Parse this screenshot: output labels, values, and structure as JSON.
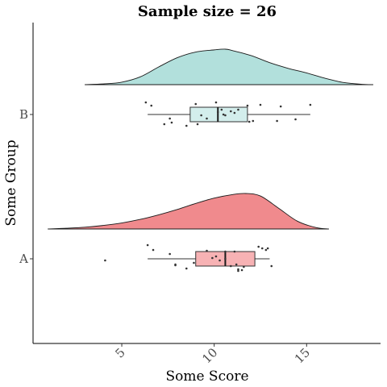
{
  "colors": {
    "group_A": "#F08A8D",
    "group_B": "#B2E0DC",
    "box_A": "#F7B2B4",
    "box_B": "#D3EEEC",
    "points": "#333333",
    "outline": "#1a1a1a"
  },
  "chart_data": {
    "type": "raincloud",
    "title": "Sample size = 26",
    "xlabel": "Some Score",
    "ylabel": "Some Group",
    "xlim": [
      0.2,
      19.0
    ],
    "xticks": [
      5,
      10,
      15
    ],
    "xtick_labels": [
      "5",
      "10",
      "15"
    ],
    "categories": [
      "A",
      "B"
    ],
    "grid": false,
    "legend": "none",
    "series": [
      {
        "name": "A",
        "color": "#F08A8D",
        "box": {
          "whisker_low": 6.4,
          "q1": 9.0,
          "median": 10.6,
          "q3": 12.2,
          "whisker_high": 13.0
        },
        "density": {
          "x": [
            1.0,
            2.0,
            3.0,
            4.0,
            5.0,
            6.0,
            7.0,
            8.0,
            9.0,
            10.0,
            11.0,
            11.7,
            12.5,
            13.5,
            14.5,
            15.5,
            16.2
          ],
          "y": [
            0.0,
            0.02,
            0.05,
            0.1,
            0.17,
            0.27,
            0.4,
            0.55,
            0.72,
            0.87,
            0.97,
            1.0,
            0.93,
            0.58,
            0.22,
            0.04,
            0.0
          ]
        },
        "points": [
          [
            4.1,
            -0.02
          ],
          [
            6.4,
            0.17
          ],
          [
            6.7,
            0.11
          ],
          [
            7.6,
            0.06
          ],
          [
            7.9,
            -0.08
          ],
          [
            7.9,
            -0.07
          ],
          [
            8.5,
            -0.12
          ],
          [
            8.9,
            -0.05
          ],
          [
            9.6,
            0.1
          ],
          [
            9.9,
            0.01
          ],
          [
            10.1,
            0.03
          ],
          [
            10.3,
            -0.02
          ],
          [
            10.6,
            0.09
          ],
          [
            10.6,
            0.0
          ],
          [
            10.9,
            -0.09
          ],
          [
            11.1,
            0.09
          ],
          [
            11.2,
            -0.07
          ],
          [
            11.3,
            -0.13
          ],
          [
            11.3,
            -0.15
          ],
          [
            11.5,
            -0.14
          ],
          [
            11.6,
            -0.1
          ],
          [
            12.4,
            0.15
          ],
          [
            12.6,
            0.13
          ],
          [
            12.8,
            0.11
          ],
          [
            12.9,
            0.13
          ],
          [
            13.1,
            -0.09
          ]
        ]
      },
      {
        "name": "B",
        "color": "#B2E0DC",
        "box": {
          "whisker_low": 6.4,
          "q1": 8.7,
          "median": 10.2,
          "q3": 11.8,
          "whisker_high": 15.2
        },
        "density": {
          "x": [
            3.0,
            4.0,
            5.0,
            6.0,
            7.0,
            8.0,
            9.0,
            10.0,
            10.6,
            11.0,
            12.0,
            13.0,
            14.0,
            15.0,
            16.0,
            17.0,
            18.0,
            18.6
          ],
          "y": [
            0.0,
            0.02,
            0.07,
            0.22,
            0.5,
            0.76,
            0.92,
            0.98,
            1.0,
            0.96,
            0.82,
            0.62,
            0.46,
            0.33,
            0.18,
            0.06,
            0.01,
            0.0
          ]
        },
        "points": [
          [
            6.3,
            0.15
          ],
          [
            6.6,
            0.11
          ],
          [
            7.3,
            -0.12
          ],
          [
            7.6,
            -0.05
          ],
          [
            7.7,
            -0.1
          ],
          [
            8.5,
            -0.14
          ],
          [
            9.0,
            0.13
          ],
          [
            9.1,
            -0.12
          ],
          [
            9.3,
            -0.01
          ],
          [
            9.6,
            -0.05
          ],
          [
            10.1,
            0.15
          ],
          [
            10.2,
            0.03
          ],
          [
            10.4,
            0.06
          ],
          [
            10.5,
            0.0
          ],
          [
            10.6,
            -0.01
          ],
          [
            10.9,
            0.04
          ],
          [
            11.1,
            0.02
          ],
          [
            11.3,
            0.06
          ],
          [
            11.8,
            0.11
          ],
          [
            11.9,
            -0.09
          ],
          [
            12.1,
            -0.08
          ],
          [
            12.5,
            0.12
          ],
          [
            13.4,
            -0.08
          ],
          [
            13.6,
            0.1
          ],
          [
            14.4,
            -0.06
          ],
          [
            15.2,
            0.12
          ]
        ]
      }
    ]
  }
}
